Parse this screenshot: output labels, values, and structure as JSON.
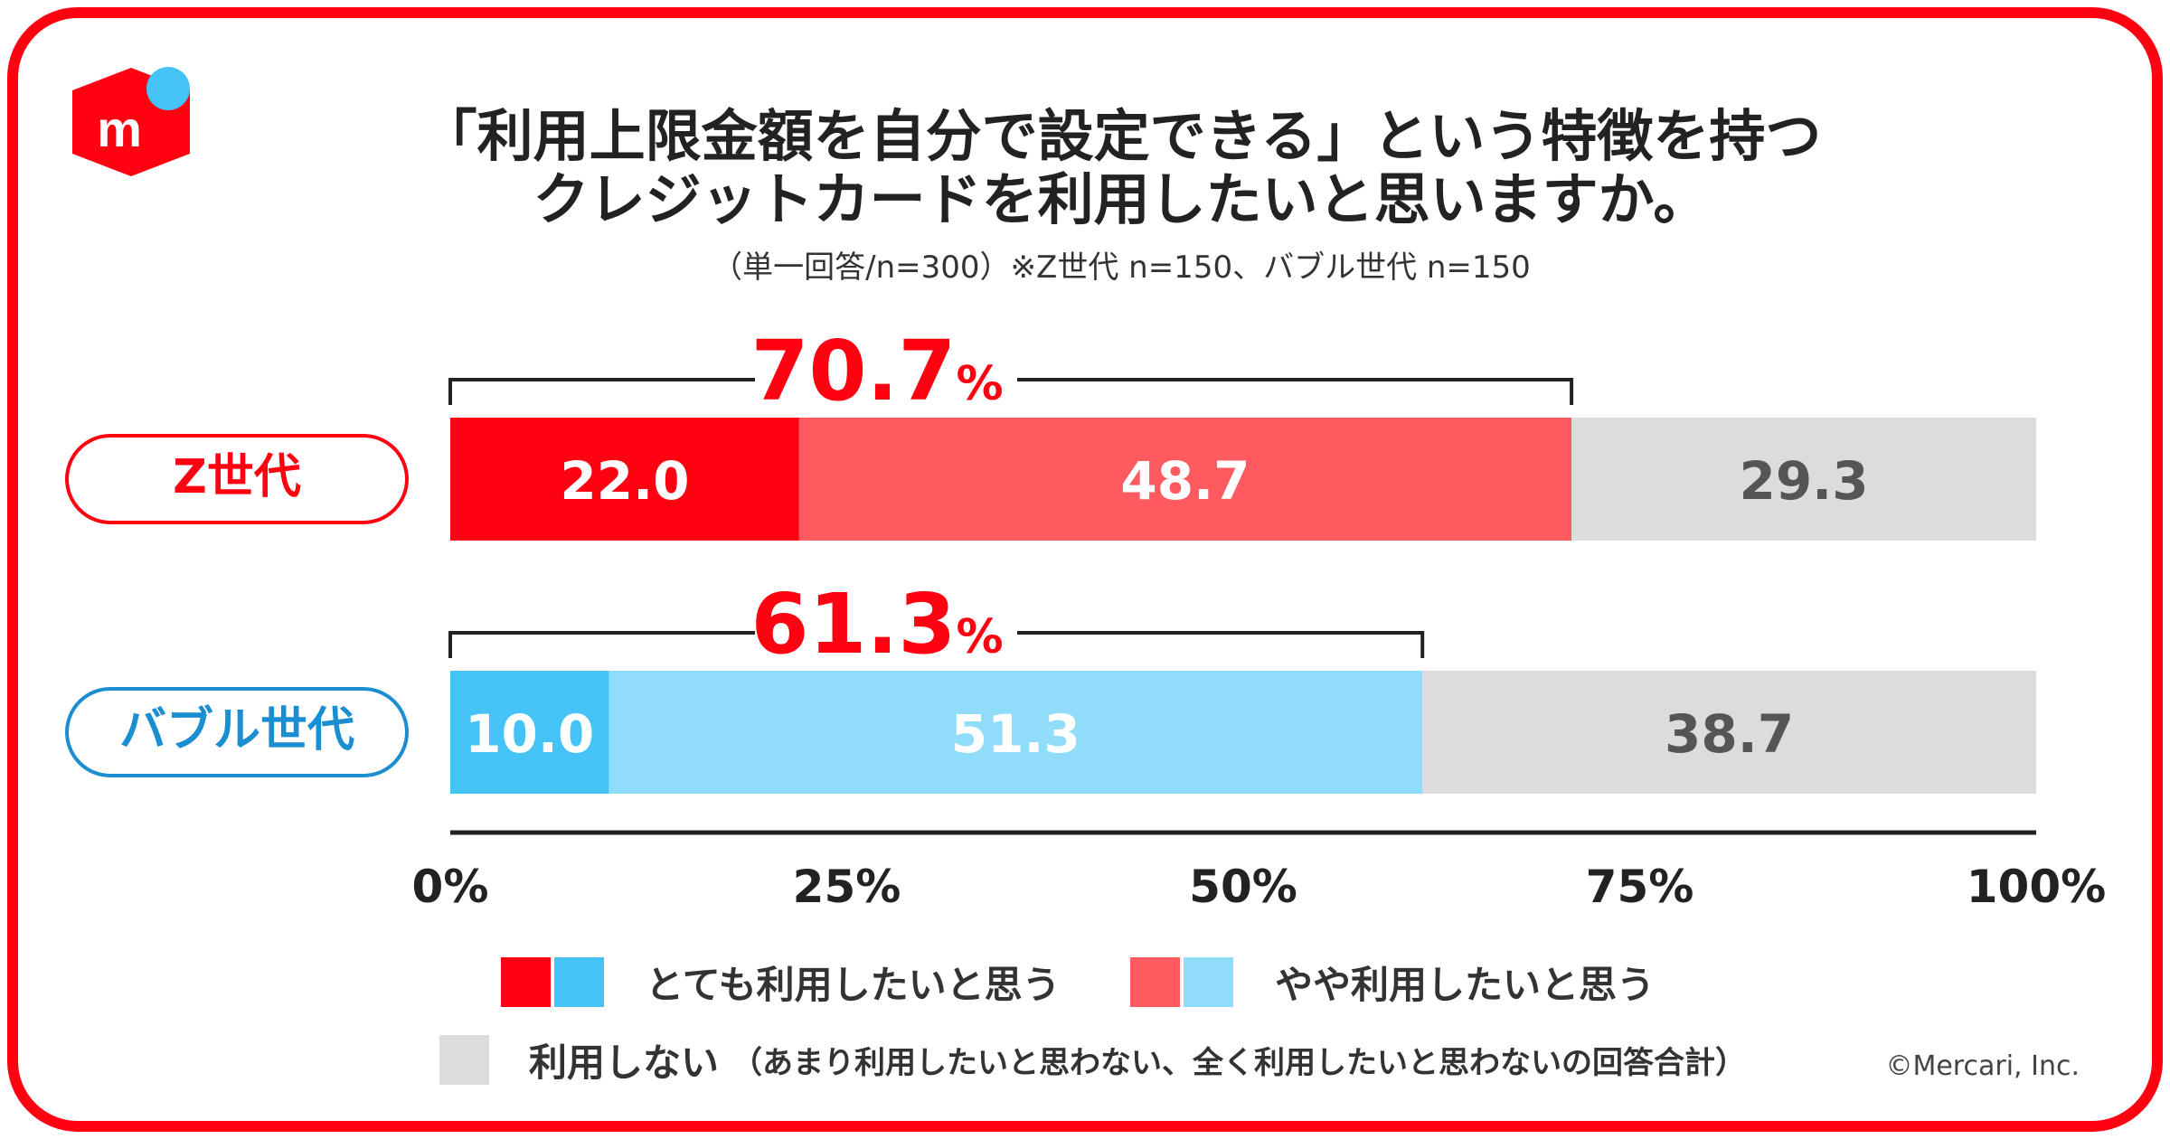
{
  "title_line1": "「利用上限金額を自分で設定できる」という特徴を持つ",
  "title_line2": "クレジットカードを利用したいと思いますか。",
  "subtitle": "（単一回答/n=300）※Z世代 n=150、バブル世代 n=150",
  "copyright": "©Mercari, Inc.",
  "colors": {
    "frame": "#ff0211",
    "z_strong": "#ff0211",
    "z_somewhat": "#ff5a5f",
    "bubble_strong": "#45c3f7",
    "bubble_somewhat": "#8fdcfb",
    "not_use": "#dcdcdc",
    "bubble_accent": "#1a8ed1"
  },
  "chart_data": {
    "type": "bar",
    "orientation": "horizontal-stacked",
    "xlim": [
      0,
      100
    ],
    "x_ticks": [
      "0%",
      "25%",
      "50%",
      "75%",
      "100%"
    ],
    "categories": [
      "Z世代",
      "バブル世代"
    ],
    "series": [
      {
        "name": "とても利用したいと思う",
        "values": [
          22.0,
          10.0
        ],
        "labels": [
          "22.0",
          "10.0"
        ]
      },
      {
        "name": "やや利用したいと思う",
        "values": [
          48.7,
          51.3
        ],
        "labels": [
          "48.7",
          "51.3"
        ]
      },
      {
        "name": "利用しない",
        "values": [
          29.3,
          38.7
        ],
        "labels": [
          "29.3",
          "38.7"
        ]
      }
    ],
    "totals": [
      {
        "value": 70.7,
        "number": "70.7",
        "unit": "%"
      },
      {
        "value": 61.3,
        "number": "61.3",
        "unit": "%"
      }
    ],
    "legend": {
      "strong": "とても利用したいと思う",
      "somewhat": "やや利用したいと思う",
      "not_use": "利用しない",
      "not_use_note": "（あまり利用したいと思わない、全く利用したいと思わないの回答合計）"
    }
  }
}
